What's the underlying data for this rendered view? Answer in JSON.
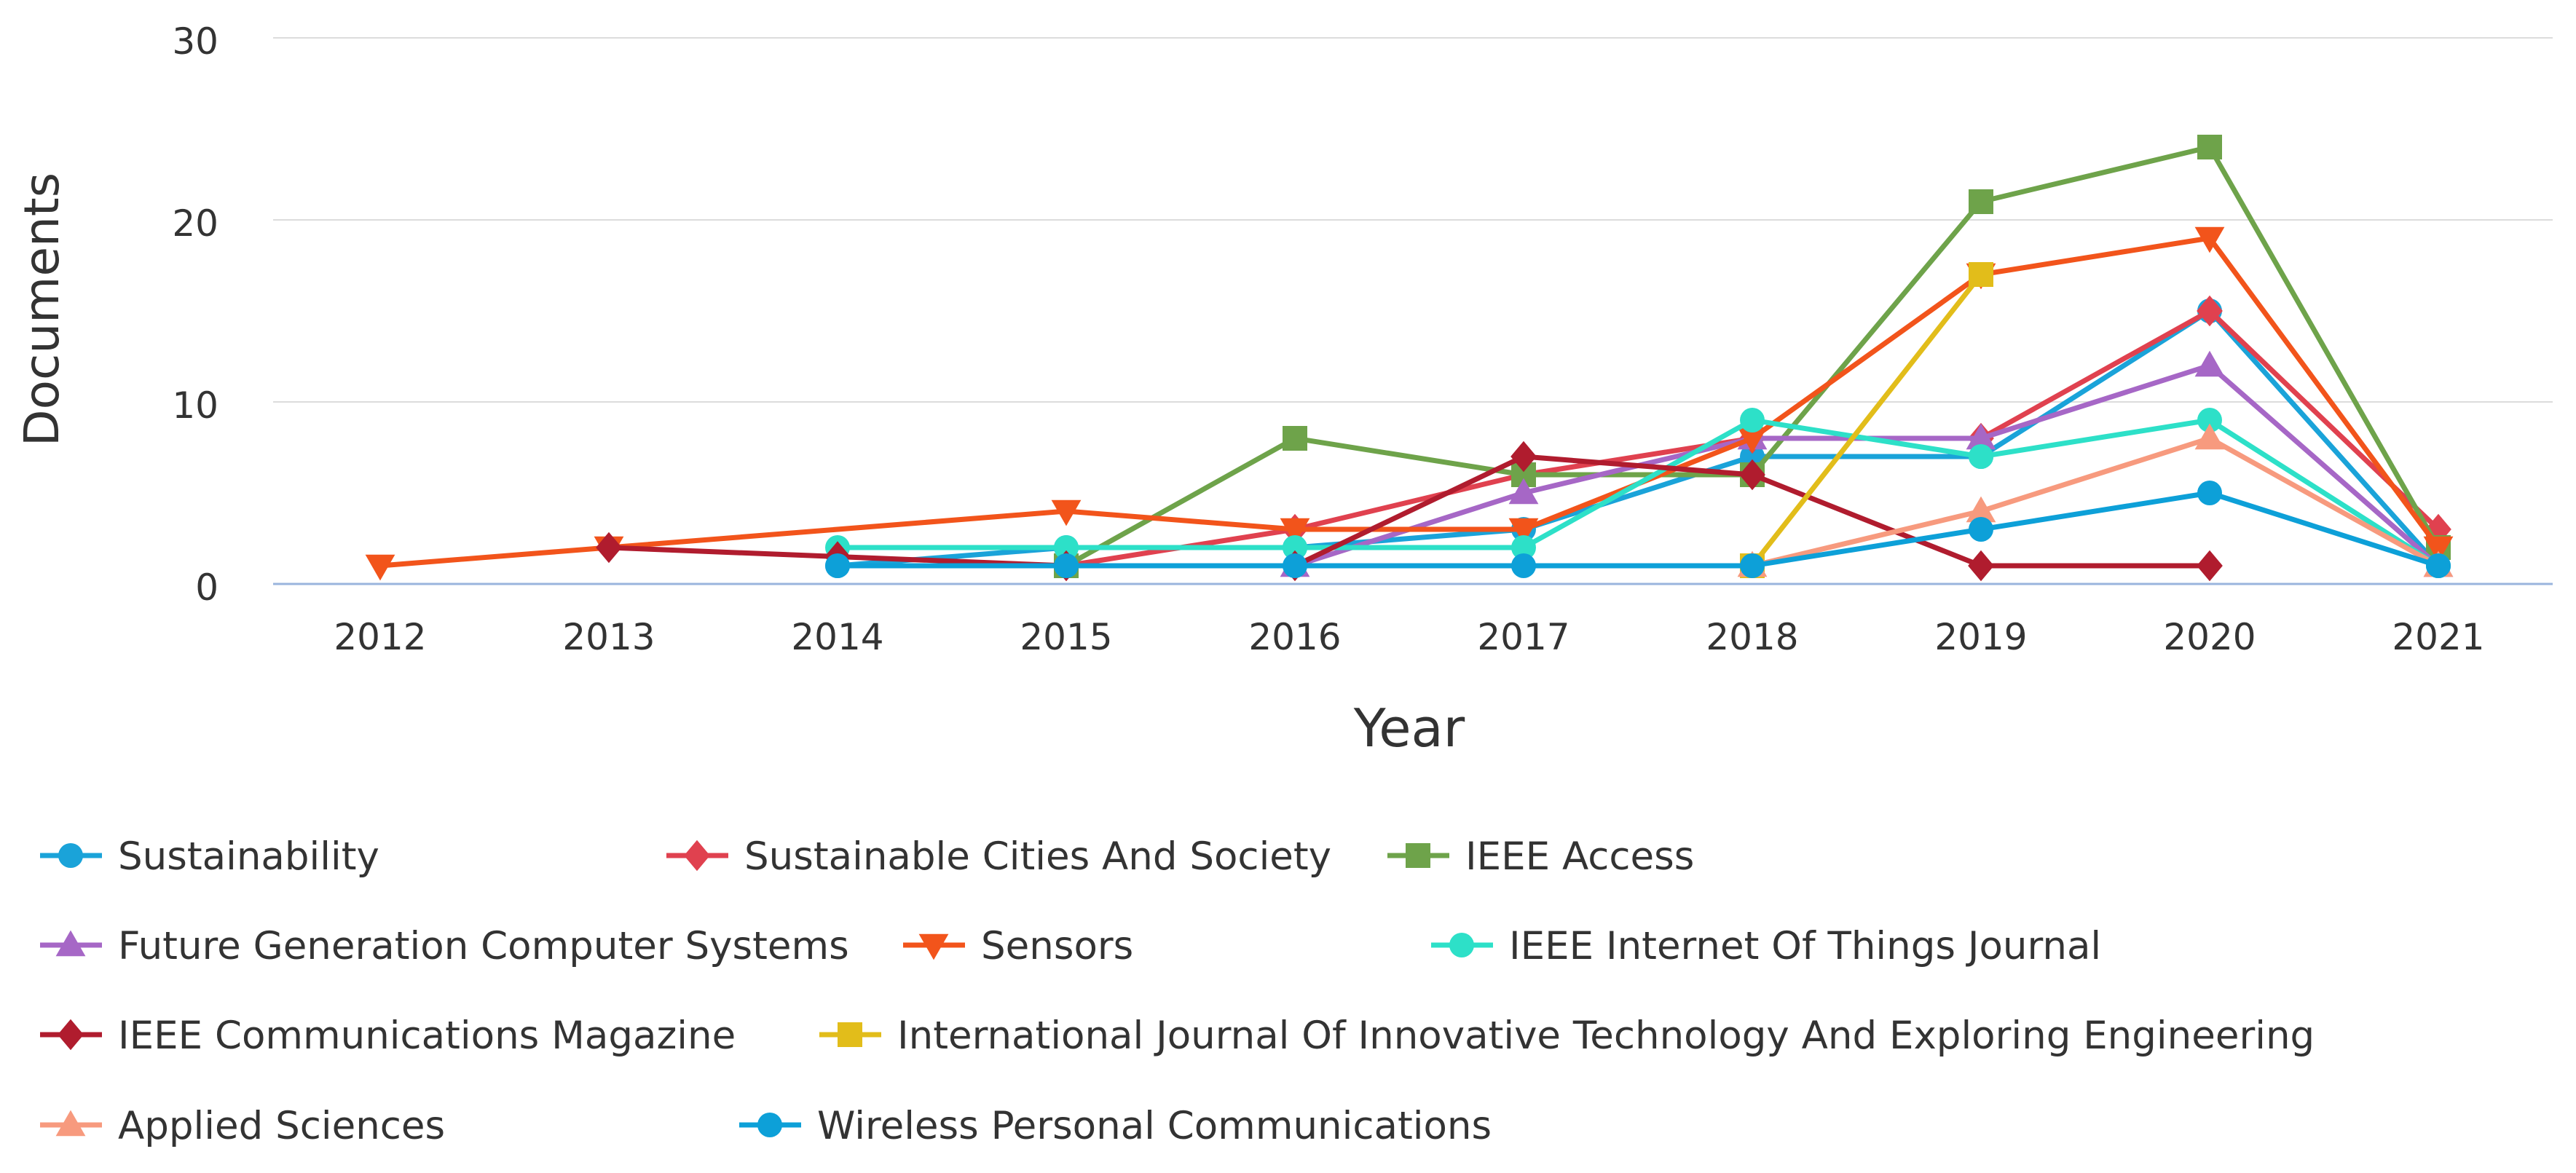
{
  "chart_data": {
    "type": "line",
    "title": "",
    "xlabel": "Year",
    "ylabel": "Documents",
    "ylim": [
      0,
      30
    ],
    "yticks": [
      0,
      10,
      20,
      30
    ],
    "categories": [
      "2012",
      "2013",
      "2014",
      "2015",
      "2016",
      "2017",
      "2018",
      "2019",
      "2020",
      "2021"
    ],
    "grid": "horizontal",
    "legend_position": "bottom",
    "series": [
      {
        "name": "Sustainability",
        "color": "#1aa3d9",
        "marker": "circle",
        "points": [
          {
            "x": "2014",
            "y": 1
          },
          {
            "x": "2015",
            "y": 2
          },
          {
            "x": "2016",
            "y": 2
          },
          {
            "x": "2017",
            "y": 3
          },
          {
            "x": "2018",
            "y": 7
          },
          {
            "x": "2019",
            "y": 7
          },
          {
            "x": "2020",
            "y": 15
          },
          {
            "x": "2021",
            "y": 1
          }
        ]
      },
      {
        "name": "Sustainable Cities And Society",
        "color": "#e0414f",
        "marker": "diamond",
        "points": [
          {
            "x": "2015",
            "y": 1
          },
          {
            "x": "2016",
            "y": 3
          },
          {
            "x": "2017",
            "y": 6
          },
          {
            "x": "2018",
            "y": 8
          },
          {
            "x": "2019",
            "y": 8
          },
          {
            "x": "2020",
            "y": 15
          },
          {
            "x": "2021",
            "y": 3
          }
        ]
      },
      {
        "name": "IEEE Access",
        "color": "#6ea34a",
        "marker": "square",
        "points": [
          {
            "x": "2015",
            "y": 1
          },
          {
            "x": "2016",
            "y": 8
          },
          {
            "x": "2017",
            "y": 6
          },
          {
            "x": "2018",
            "y": 6
          },
          {
            "x": "2019",
            "y": 21
          },
          {
            "x": "2020",
            "y": 24
          },
          {
            "x": "2021",
            "y": 2
          }
        ]
      },
      {
        "name": "Future Generation Computer Systems",
        "color": "#a667c6",
        "marker": "triangle-up",
        "points": [
          {
            "x": "2016",
            "y": 1
          },
          {
            "x": "2017",
            "y": 5
          },
          {
            "x": "2018",
            "y": 8
          },
          {
            "x": "2019",
            "y": 8
          },
          {
            "x": "2020",
            "y": 12
          },
          {
            "x": "2021",
            "y": 1
          }
        ]
      },
      {
        "name": "Sensors",
        "color": "#f2541b",
        "marker": "triangle-down",
        "points": [
          {
            "x": "2012",
            "y": 1
          },
          {
            "x": "2013",
            "y": 2
          },
          {
            "x": "2015",
            "y": 4
          },
          {
            "x": "2016",
            "y": 3
          },
          {
            "x": "2017",
            "y": 3
          },
          {
            "x": "2018",
            "y": 8
          },
          {
            "x": "2019",
            "y": 17
          },
          {
            "x": "2020",
            "y": 19
          },
          {
            "x": "2021",
            "y": 2
          }
        ]
      },
      {
        "name": "IEEE Internet Of Things Journal",
        "color": "#2de0c8",
        "marker": "circle",
        "points": [
          {
            "x": "2014",
            "y": 2
          },
          {
            "x": "2015",
            "y": 2
          },
          {
            "x": "2016",
            "y": 2
          },
          {
            "x": "2017",
            "y": 2
          },
          {
            "x": "2018",
            "y": 9
          },
          {
            "x": "2019",
            "y": 7
          },
          {
            "x": "2020",
            "y": 9
          },
          {
            "x": "2021",
            "y": 1
          }
        ]
      },
      {
        "name": "IEEE Communications Magazine",
        "color": "#b01c2e",
        "marker": "diamond",
        "points": [
          {
            "x": "2013",
            "y": 2
          },
          {
            "x": "2014",
            "y": 1.5
          },
          {
            "x": "2015",
            "y": 1
          },
          {
            "x": "2016",
            "y": 1
          },
          {
            "x": "2017",
            "y": 7
          },
          {
            "x": "2018",
            "y": 6
          },
          {
            "x": "2019",
            "y": 1
          },
          {
            "x": "2020",
            "y": 1
          }
        ]
      },
      {
        "name": "International Journal Of Innovative Technology And Exploring Engineering",
        "color": "#e2bd1a",
        "marker": "square",
        "points": [
          {
            "x": "2018",
            "y": 1
          },
          {
            "x": "2019",
            "y": 17
          }
        ]
      },
      {
        "name": "Applied Sciences",
        "color": "#f79a7e",
        "marker": "triangle-up",
        "points": [
          {
            "x": "2018",
            "y": 1
          },
          {
            "x": "2019",
            "y": 4
          },
          {
            "x": "2020",
            "y": 8
          },
          {
            "x": "2021",
            "y": 1
          }
        ]
      },
      {
        "name": "Wireless Personal Communications",
        "color": "#0da0d8",
        "marker": "circle",
        "points": [
          {
            "x": "2014",
            "y": 1
          },
          {
            "x": "2015",
            "y": 1
          },
          {
            "x": "2016",
            "y": 1
          },
          {
            "x": "2017",
            "y": 1
          },
          {
            "x": "2018",
            "y": 1
          },
          {
            "x": "2019",
            "y": 3
          },
          {
            "x": "2020",
            "y": 5
          },
          {
            "x": "2021",
            "y": 1
          }
        ]
      }
    ]
  }
}
